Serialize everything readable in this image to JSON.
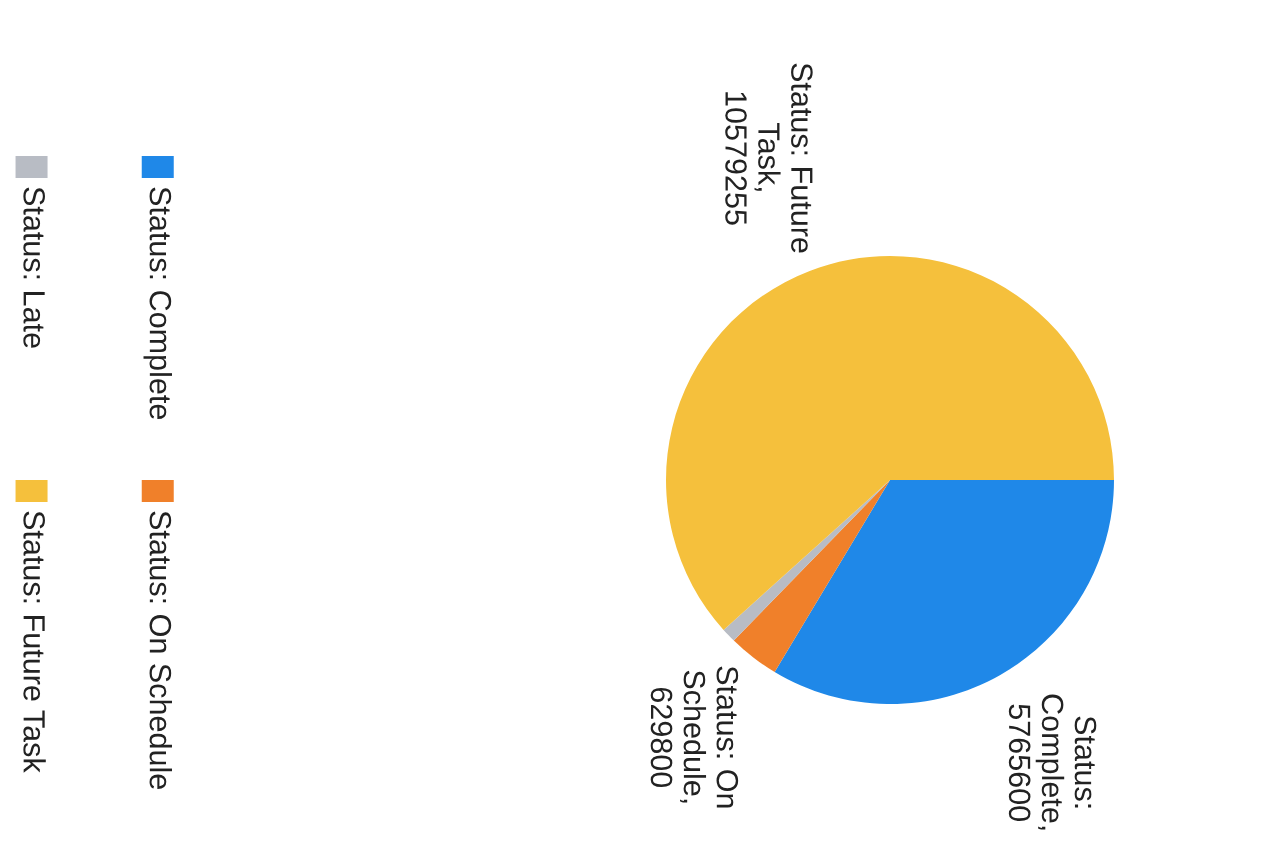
{
  "chart_data": {
    "type": "pie",
    "categories": [
      "Status: Complete",
      "Status: On Schedule",
      "Status: Late",
      "Status: Future Task"
    ],
    "values": [
      5765600,
      629800,
      180000,
      10579255
    ],
    "colors": [
      "#1f88e8",
      "#f0802a",
      "#b8bcc4",
      "#f5c03c"
    ],
    "value_labels": [
      "Status:\nComplete,\n5765600",
      "Status: On\nSchedule,\n629800",
      null,
      "Status: Future\nTask,\n10579255"
    ],
    "legend": "left"
  }
}
